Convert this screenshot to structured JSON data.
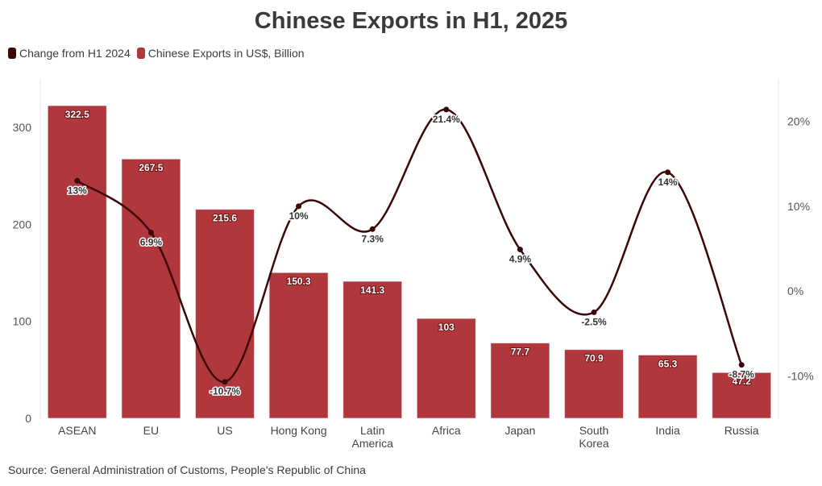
{
  "title": "Chinese Exports in H1, 2025",
  "source": "Source: General Administration of Customs, People's Republic of China",
  "colors": {
    "bar": "#b0383c",
    "line": "#3d0708"
  },
  "chart_data": {
    "type": "bar",
    "title": "Chinese Exports in H1, 2025",
    "categories": [
      "ASEAN",
      "EU",
      "US",
      "Hong Kong",
      "Latin America",
      "Africa",
      "Japan",
      "South Korea",
      "India",
      "Russia"
    ],
    "category_lines": [
      [
        "ASEAN"
      ],
      [
        "EU"
      ],
      [
        "US"
      ],
      [
        "Hong Kong"
      ],
      [
        "Latin",
        "America"
      ],
      [
        "Africa"
      ],
      [
        "Japan"
      ],
      [
        "South",
        "Korea"
      ],
      [
        "India"
      ],
      [
        "Russia"
      ]
    ],
    "series": [
      {
        "name": "Chinese Exports in US$, Billion",
        "type": "bar",
        "axis": "left",
        "values": [
          322.5,
          267.5,
          215.6,
          150.3,
          141.3,
          103,
          77.7,
          70.9,
          65.3,
          47.2
        ],
        "labels": [
          "322.5",
          "267.5",
          "215.6",
          "150.3",
          "141.3",
          "103",
          "77.7",
          "70.9",
          "65.3",
          "47.2"
        ]
      },
      {
        "name": "Change from H1 2024",
        "type": "line",
        "axis": "right",
        "values": [
          13,
          6.9,
          -10.7,
          10,
          7.3,
          21.4,
          4.9,
          -2.5,
          14,
          -8.7
        ],
        "labels": [
          "13%",
          "6.9%",
          "-10.7%",
          "10%",
          "7.3%",
          "21.4%",
          "4.9%",
          "-2.5%",
          "14%",
          "-8.7%"
        ]
      }
    ],
    "left_axis": {
      "ylim": [
        0,
        350
      ],
      "ticks": [
        0,
        100,
        200,
        300
      ],
      "tick_labels": [
        "0",
        "100",
        "200",
        "300"
      ]
    },
    "right_axis": {
      "ylim": [
        -15,
        25
      ],
      "ticks": [
        -10,
        0,
        10,
        20
      ],
      "tick_labels": [
        "-10%",
        "0%",
        "10%",
        "20%"
      ]
    },
    "legend": [
      "Change from H1 2024",
      "Chinese Exports in US$, Billion"
    ],
    "legend_position": "top-left"
  }
}
